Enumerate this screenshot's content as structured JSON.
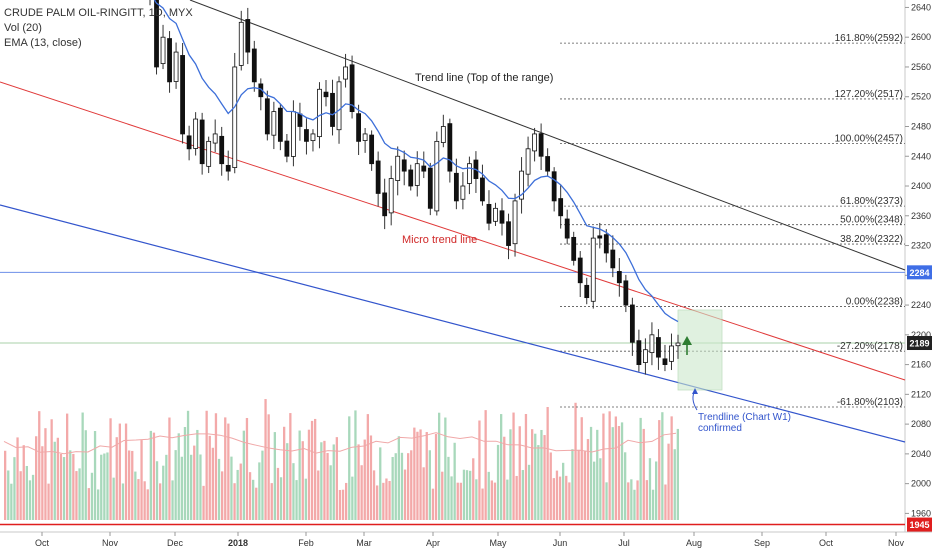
{
  "legend": {
    "symbol_line": "CRUDE PALM OIL-RINGITT, 1D, MYX",
    "vol_line": "Vol (20)",
    "ema_line": "EMA (13, close)"
  },
  "chart_data": {
    "type": "candlestick",
    "title": "CRUDE PALM OIL-RINGITT, 1D, MYX",
    "xlabel": "",
    "ylabel": "",
    "ylim": [
      1935,
      2650
    ],
    "y_ticks": [
      1960,
      2000,
      2040,
      2080,
      2120,
      2160,
      2200,
      2240,
      2280,
      2320,
      2360,
      2400,
      2440,
      2480,
      2520,
      2560,
      2600,
      2640
    ],
    "x_labels": [
      "Oct",
      "Nov",
      "Dec",
      "2018",
      "Feb",
      "Mar",
      "Apr",
      "May",
      "Jun",
      "Jul",
      "Aug",
      "Sep",
      "Oct",
      "Nov"
    ],
    "price_badges": [
      {
        "value": "2284",
        "color": "#3f6ee6"
      },
      {
        "value": "2189",
        "color": "#222222"
      },
      {
        "value": "1945",
        "color": "#e01e1e"
      }
    ],
    "fib_levels": [
      {
        "label": "161.80%(2592)",
        "value": 2592
      },
      {
        "label": "127.20%(2517)",
        "value": 2517
      },
      {
        "label": "100.00%(2457)",
        "value": 2457
      },
      {
        "label": "61.80%(2373)",
        "value": 2373
      },
      {
        "label": "50.00%(2348)",
        "value": 2348
      },
      {
        "label": "38.20%(2322)",
        "value": 2322
      },
      {
        "label": "0.00%(2238)",
        "value": 2238
      },
      {
        "label": "-27.20%(2178)",
        "value": 2178
      },
      {
        "label": "-61.80%(2103)",
        "value": 2103
      }
    ],
    "annotations": {
      "top_trend": "Trend line (Top of the range)",
      "micro_trend": "Micro trend line",
      "trendline_w1_line1": "Trendline (Chart W1)",
      "trendline_w1_line2": "confirmed"
    },
    "closes": [
      2660,
      2560,
      2600,
      2540,
      2580,
      2470,
      2450,
      2490,
      2430,
      2460,
      2470,
      2430,
      2420,
      2560,
      2620,
      2580,
      2540,
      2520,
      2470,
      2500,
      2460,
      2440,
      2500,
      2480,
      2460,
      2470,
      2530,
      2520,
      2480,
      2540,
      2560,
      2500,
      2460,
      2470,
      2430,
      2390,
      2360,
      2410,
      2440,
      2420,
      2400,
      2430,
      2420,
      2370,
      2460,
      2480,
      2420,
      2380,
      2400,
      2430,
      2410,
      2380,
      2350,
      2370,
      2350,
      2320,
      2380,
      2420,
      2450,
      2470,
      2440,
      2420,
      2380,
      2360,
      2330,
      2300,
      2270,
      2250,
      2330,
      2330,
      2310,
      2290,
      2270,
      2240,
      2190,
      2160,
      2180,
      2200,
      2170,
      2160,
      2185,
      2189
    ]
  }
}
